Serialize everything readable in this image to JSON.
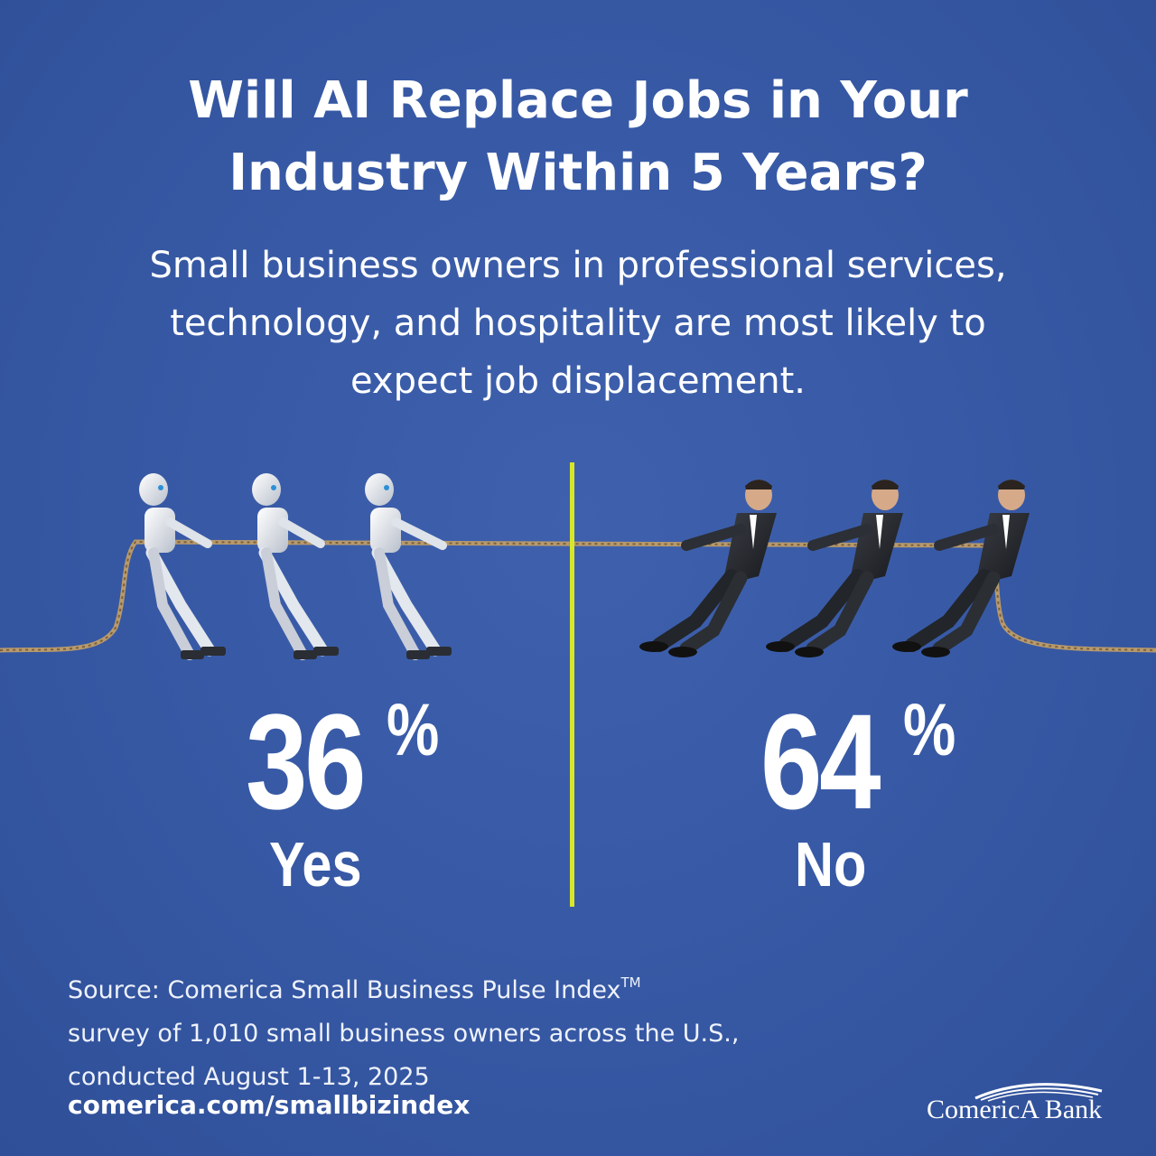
{
  "header": {
    "title_line1": "Will AI Replace Jobs in Your",
    "title_line2": "Industry Within 5 Years?",
    "subtitle_line1": "Small business owners in professional services,",
    "subtitle_line2": "technology, and hospitality are most likely to",
    "subtitle_line3": "expect job displacement."
  },
  "chart_data": {
    "type": "bar",
    "categories": [
      "Yes",
      "No"
    ],
    "values": [
      36,
      64
    ],
    "unit": "%",
    "labels": {
      "yes_value": "36",
      "no_value": "64",
      "percent_sign": "%"
    }
  },
  "footer": {
    "source_line1": "Source: Comerica Small Business Pulse Index",
    "source_tm": "TM",
    "source_line2": "survey of 1,010 small business owners across the U.S.,",
    "source_line3": "conducted August 1-13, 2025",
    "url": "comerica.com/smallbizindex",
    "brand": "ComericA Bank"
  },
  "colors": {
    "background": "#3a5ca8",
    "divider": "#d8e62a",
    "text": "#ffffff"
  }
}
